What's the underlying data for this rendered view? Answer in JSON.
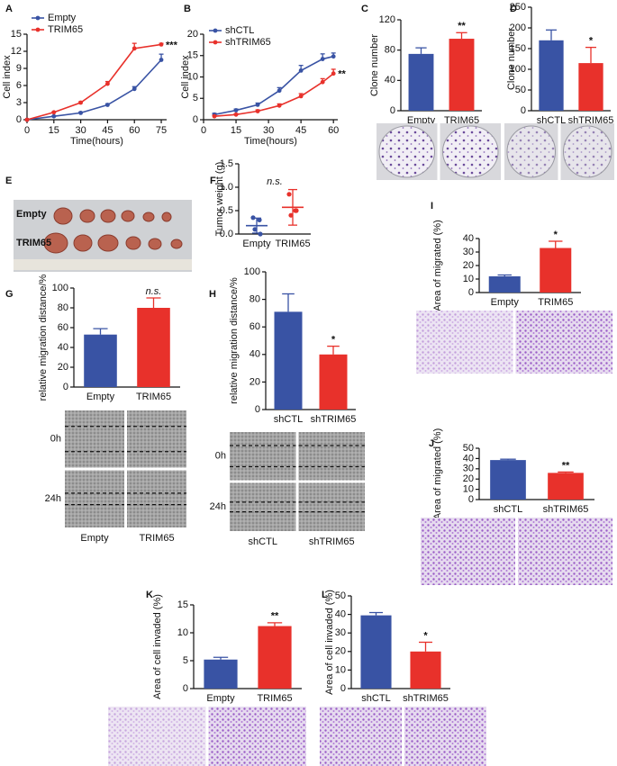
{
  "chart_data": [
    {
      "type": "line",
      "label": "A",
      "ylabel": "Cell index",
      "xlabel": "Time(hours)",
      "x": [
        0,
        15,
        30,
        45,
        60,
        75
      ],
      "xlim": [
        0,
        78
      ],
      "xticks": [
        0,
        15,
        30,
        45,
        60,
        75
      ],
      "ylim": [
        0,
        15
      ],
      "yticks": [
        0,
        3,
        6,
        9,
        12,
        15
      ],
      "series": [
        {
          "name": "Empty",
          "color": "#3953a4",
          "values": [
            0,
            0.6,
            1.2,
            2.6,
            5.4,
            10.5
          ],
          "errors": [
            0,
            0.1,
            0.15,
            0.2,
            0.4,
            1.0
          ]
        },
        {
          "name": "TRIM65",
          "color": "#e8312b",
          "values": [
            0,
            1.3,
            3.0,
            6.3,
            12.5,
            13.2
          ],
          "errors": [
            0,
            0.1,
            0.15,
            0.4,
            0.9,
            0.2
          ]
        }
      ],
      "annotation": "***"
    },
    {
      "type": "line",
      "label": "B",
      "ylabel": "Cell index",
      "xlabel": "Time(hours)",
      "x": [
        5,
        15,
        25,
        35,
        45,
        55,
        60
      ],
      "xlim": [
        0,
        62
      ],
      "xticks": [
        0,
        15,
        30,
        45,
        60
      ],
      "ylim": [
        0,
        20
      ],
      "yticks": [
        0,
        5,
        10,
        15,
        20
      ],
      "series": [
        {
          "name": "shCTL",
          "color": "#3953a4",
          "values": [
            1.2,
            2.2,
            3.5,
            6.8,
            11.5,
            14.2,
            14.8
          ],
          "errors": [
            0.3,
            0.3,
            0.4,
            0.7,
            1.2,
            1.2,
            0.8
          ]
        },
        {
          "name": "shTRIM65",
          "color": "#e8312b",
          "values": [
            0.8,
            1.2,
            2.0,
            3.3,
            5.5,
            8.8,
            10.8
          ],
          "errors": [
            0.2,
            0.2,
            0.3,
            0.4,
            0.6,
            0.8,
            1.0
          ]
        }
      ],
      "annotation": "**"
    },
    {
      "type": "bar",
      "label": "C",
      "ylabel": "Clone number",
      "categories": [
        "Empty",
        "TRIM65"
      ],
      "values": [
        75,
        95
      ],
      "errors": [
        8,
        8
      ],
      "colors": [
        "#3953a4",
        "#e8312b"
      ],
      "ylim": [
        0,
        120
      ],
      "yticks": [
        0,
        40,
        80,
        120
      ],
      "annotation": "**"
    },
    {
      "type": "bar",
      "label": "D",
      "ylabel": "Clone number",
      "categories": [
        "shCTL",
        "shTRIM65"
      ],
      "values": [
        170,
        115
      ],
      "errors": [
        25,
        38
      ],
      "colors": [
        "#3953a4",
        "#e8312b"
      ],
      "ylim": [
        0,
        250
      ],
      "yticks": [
        0,
        50,
        100,
        150,
        200,
        250
      ],
      "annotation": "*"
    },
    {
      "type": "image",
      "label": "E",
      "image_rows": [
        "Empty",
        "TRIM65"
      ]
    },
    {
      "type": "dot",
      "label": "F",
      "ylabel": "Tumor weight (g)",
      "categories": [
        "Empty",
        "TRIM65"
      ],
      "points": [
        [
          0.35,
          0.3,
          0.1,
          0.0
        ],
        [
          0.85,
          0.5,
          0.4,
          0.5
        ]
      ],
      "means": [
        0.18,
        0.57
      ],
      "errors": [
        0.16,
        0.38
      ],
      "colors": [
        "#3953a4",
        "#e8312b"
      ],
      "ylim": [
        0,
        1.5
      ],
      "yticks": [
        {
          "value": 0,
          "label": "0.0"
        },
        0.5,
        {
          "value": 1,
          "label": "1.0"
        },
        1.5
      ],
      "annotation": "n.s."
    },
    {
      "type": "bar",
      "label": "G",
      "ylabel": "relative migration distance/%",
      "categories": [
        "Empty",
        "TRIM65"
      ],
      "values": [
        53,
        80
      ],
      "errors": [
        6,
        10
      ],
      "colors": [
        "#3953a4",
        "#e8312b"
      ],
      "ylim": [
        0,
        100
      ],
      "yticks": [
        0,
        20,
        40,
        60,
        80,
        100
      ],
      "annotation": "n.s.",
      "image_rows": [
        "0h",
        "24h"
      ],
      "image_columns": [
        "Empty",
        "TRIM65"
      ]
    },
    {
      "type": "bar",
      "label": "H",
      "ylabel": "relative migration distance/%",
      "categories": [
        "shCTL",
        "shTRIM65"
      ],
      "values": [
        71,
        40
      ],
      "errors": [
        13,
        6
      ],
      "colors": [
        "#3953a4",
        "#e8312b"
      ],
      "ylim": [
        0,
        100
      ],
      "yticks": [
        0,
        20,
        40,
        60,
        80,
        100
      ],
      "annotation": "*",
      "image_rows": [
        "0h",
        "24h"
      ],
      "image_columns": [
        "shCTL",
        "shTRIM65"
      ]
    },
    {
      "type": "bar",
      "label": "I",
      "ylabel": "Area of  migrated (%)",
      "categories": [
        "Empty",
        "TRIM65"
      ],
      "values": [
        12,
        33
      ],
      "errors": [
        1,
        5
      ],
      "colors": [
        "#3953a4",
        "#e8312b"
      ],
      "ylim": [
        0,
        40
      ],
      "yticks": [
        0,
        10,
        20,
        30,
        40
      ],
      "annotation": "*"
    },
    {
      "type": "bar",
      "label": "J",
      "ylabel": "Area of  migrated (%)",
      "categories": [
        "shCTL",
        "shTRIM65"
      ],
      "values": [
        38.5,
        26
      ],
      "errors": [
        0.8,
        0.8
      ],
      "colors": [
        "#3953a4",
        "#e8312b"
      ],
      "ylim": [
        0,
        50
      ],
      "yticks": [
        0,
        10,
        20,
        30,
        40,
        50
      ],
      "annotation": "**"
    },
    {
      "type": "bar",
      "label": "K",
      "ylabel": "Area of  cell invaded (%)",
      "categories": [
        "Empty",
        "TRIM65"
      ],
      "values": [
        5.2,
        11.2
      ],
      "errors": [
        0.4,
        0.6
      ],
      "colors": [
        "#3953a4",
        "#e8312b"
      ],
      "ylim": [
        0,
        15
      ],
      "yticks": [
        0,
        5,
        10,
        15
      ],
      "annotation": "**"
    },
    {
      "type": "bar",
      "label": "L",
      "ylabel": "Area of  cell invaded (%)",
      "categories": [
        "shCTL",
        "shTRIM65"
      ],
      "values": [
        39.5,
        20
      ],
      "errors": [
        1.5,
        5
      ],
      "colors": [
        "#3953a4",
        "#e8312b"
      ],
      "ylim": [
        0,
        50
      ],
      "yticks": [
        0,
        10,
        20,
        30,
        40,
        50
      ],
      "annotation": "*"
    }
  ]
}
